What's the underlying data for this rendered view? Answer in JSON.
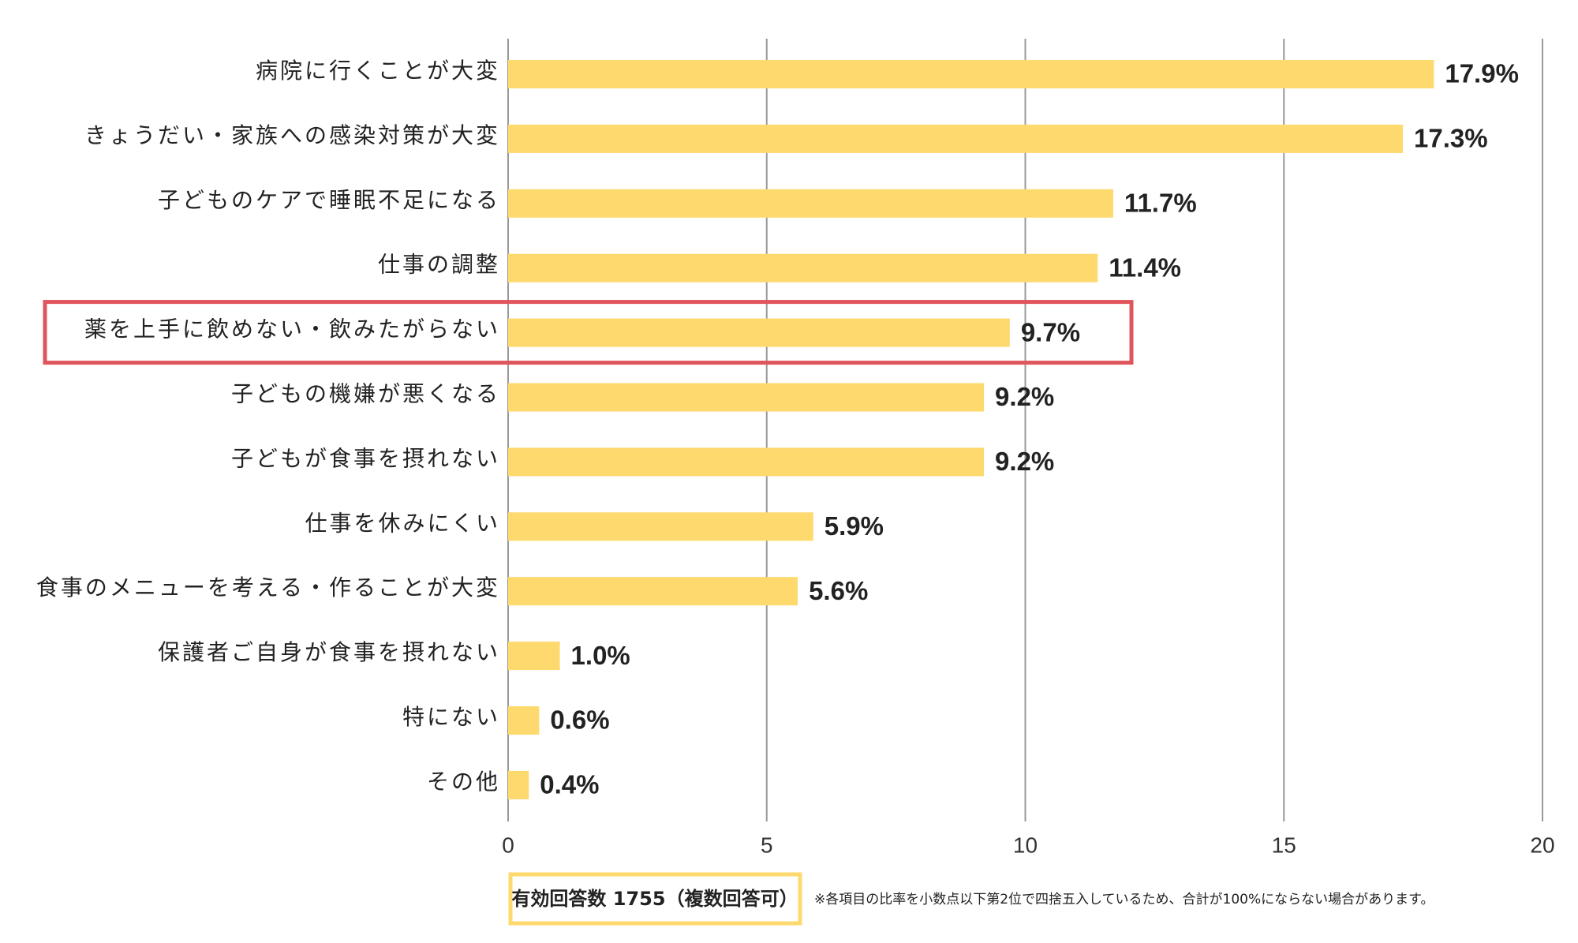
{
  "chart_data": {
    "type": "bar",
    "orientation": "horizontal",
    "categories": [
      "病院に行くことが大変",
      "きょうだい・家族への感染対策が大変",
      "子どものケアで睡眠不足になる",
      "仕事の調整",
      "薬を上手に飲めない・飲みたがらない",
      "子どもの機嫌が悪くなる",
      "子どもが食事を摂れない",
      "仕事を休みにくい",
      "食事のメニューを考える・作ることが大変",
      "保護者ご自身が食事を摂れない",
      "特にない",
      "その他"
    ],
    "values": [
      17.9,
      17.3,
      11.7,
      11.4,
      9.7,
      9.2,
      9.2,
      5.9,
      5.6,
      1.0,
      0.6,
      0.4
    ],
    "value_labels": [
      "17.9%",
      "17.3%",
      "11.7%",
      "11.4%",
      "9.7%",
      "9.2%",
      "9.2%",
      "5.9%",
      "5.6%",
      "1.0%",
      "0.6%",
      "0.4%"
    ],
    "color": "#fdd96e",
    "highlight_index": 4,
    "highlight_color": "#e0545c",
    "xlim": [
      0,
      20
    ],
    "xticks": [
      0,
      5,
      10,
      15,
      20
    ],
    "grid": true,
    "respondents": "有効回答数 1755（複数回答可）",
    "footnote": "※各項目の比率を小数点以下第2位で四捨五入しているため、合計が100%にならない場合があります。"
  }
}
